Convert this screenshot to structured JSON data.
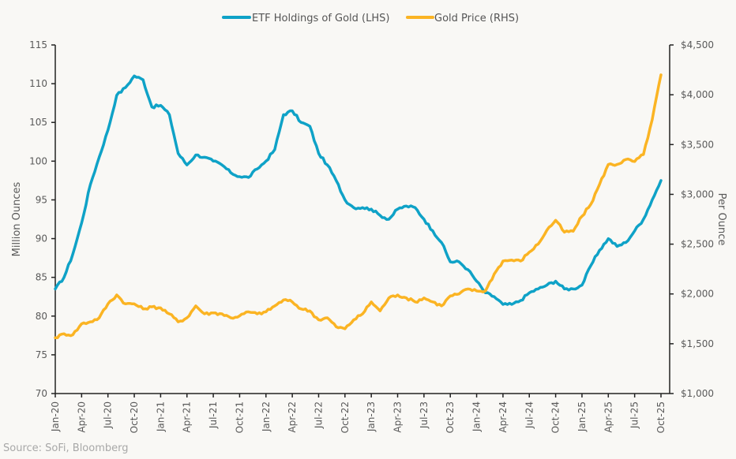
{
  "chart_data": {
    "type": "line",
    "title": "",
    "legend": {
      "placement": "top-center",
      "entries": [
        {
          "name": "ETF Holdings of Gold (LHS)",
          "color": "#0fa2c7"
        },
        {
          "name": "Gold Price (RHS)",
          "color": "#fbb423"
        }
      ]
    },
    "xlabel": "",
    "ylabel_left": "Million Ounces",
    "ylabel_right": "Per Ounce",
    "ylim_left": [
      70,
      115
    ],
    "ylim_right": [
      1000,
      4500
    ],
    "yticks_left": [
      "70",
      "75",
      "80",
      "85",
      "90",
      "95",
      "100",
      "105",
      "110",
      "115"
    ],
    "yticks_right": [
      "$1,000",
      "$1,500",
      "$2,000",
      "$2,500",
      "$3,000",
      "$3,500",
      "$4,000",
      "$4,500"
    ],
    "xticks": [
      "Jan-20",
      "Apr-20",
      "Jul-20",
      "Oct-20",
      "Jan-21",
      "Apr-21",
      "Jul-21",
      "Oct-21",
      "Jan-22",
      "Apr-22",
      "Jul-22",
      "Oct-22",
      "Jan-23",
      "Apr-23",
      "Jul-23",
      "Oct-23",
      "Jan-24",
      "Apr-24",
      "Jul-24",
      "Oct-24",
      "Jan-25",
      "Apr-25",
      "Jul-25",
      "Oct-25"
    ],
    "grid": false,
    "x_months": [
      "2020-01",
      "2020-02",
      "2020-03",
      "2020-04",
      "2020-05",
      "2020-06",
      "2020-07",
      "2020-08",
      "2020-09",
      "2020-10",
      "2020-11",
      "2020-12",
      "2021-01",
      "2021-02",
      "2021-03",
      "2021-04",
      "2021-05",
      "2021-06",
      "2021-07",
      "2021-08",
      "2021-09",
      "2021-10",
      "2021-11",
      "2021-12",
      "2022-01",
      "2022-02",
      "2022-03",
      "2022-04",
      "2022-05",
      "2022-06",
      "2022-07",
      "2022-08",
      "2022-09",
      "2022-10",
      "2022-11",
      "2022-12",
      "2023-01",
      "2023-02",
      "2023-03",
      "2023-04",
      "2023-05",
      "2023-06",
      "2023-07",
      "2023-08",
      "2023-09",
      "2023-10",
      "2023-11",
      "2023-12",
      "2024-01",
      "2024-02",
      "2024-03",
      "2024-04",
      "2024-05",
      "2024-06",
      "2024-07",
      "2024-08",
      "2024-09",
      "2024-10",
      "2024-11",
      "2024-12",
      "2025-01",
      "2025-02",
      "2025-03",
      "2025-04",
      "2025-05",
      "2025-06",
      "2025-07",
      "2025-08",
      "2025-09",
      "2025-10"
    ],
    "series": [
      {
        "name": "ETF Holdings of Gold (LHS)",
        "axis": "left",
        "color": "#0fa2c7",
        "values": [
          83.5,
          85,
          88,
          92,
          97,
          100.5,
          104,
          108.5,
          109.5,
          111,
          110.5,
          107,
          107.2,
          106,
          101,
          99.5,
          100.8,
          100.5,
          100,
          99.5,
          98.5,
          98,
          97.9,
          99,
          100,
          101.5,
          106,
          106.5,
          105,
          104.5,
          101,
          99.5,
          97.5,
          95,
          94,
          94,
          93.8,
          93,
          92.5,
          93.8,
          94.2,
          94,
          92.5,
          91,
          89.5,
          87,
          87,
          86,
          84.5,
          83,
          82.5,
          81.5,
          81.5,
          82,
          83,
          83.5,
          84,
          84.5,
          83.5,
          83.5,
          84,
          86.5,
          88.5,
          90,
          89,
          89.5,
          91,
          92.5,
          95,
          97.5
        ]
      },
      {
        "name": "Gold Price (RHS)",
        "axis": "right",
        "color": "#fbb423",
        "values": [
          1560,
          1600,
          1590,
          1700,
          1720,
          1760,
          1900,
          1990,
          1900,
          1900,
          1850,
          1870,
          1860,
          1800,
          1720,
          1760,
          1880,
          1800,
          1810,
          1800,
          1760,
          1780,
          1820,
          1800,
          1820,
          1880,
          1940,
          1920,
          1850,
          1830,
          1740,
          1760,
          1670,
          1650,
          1740,
          1800,
          1920,
          1830,
          1960,
          1990,
          1960,
          1920,
          1960,
          1920,
          1880,
          1980,
          2000,
          2050,
          2030,
          2030,
          2200,
          2330,
          2340,
          2330,
          2420,
          2500,
          2640,
          2740,
          2620,
          2630,
          2780,
          2900,
          3100,
          3300,
          3300,
          3350,
          3330,
          3400,
          3750,
          4200
        ]
      }
    ]
  },
  "source": "Source: SoFi, Bloomberg"
}
